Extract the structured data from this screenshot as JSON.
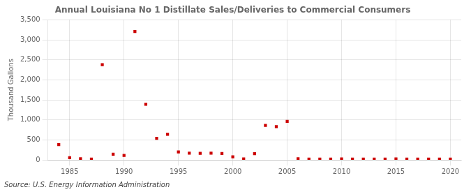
{
  "chart_data": {
    "type": "scatter",
    "title": "Annual Louisiana No 1 Distillate Sales/Deliveries to Commercial Consumers",
    "y_label": "Thousand Gallons",
    "annotation": "Source: U.S. Energy Information Administration",
    "color": "#cc0000",
    "marker": "square",
    "grid": true,
    "xlim": [
      1983,
      2021
    ],
    "ylim": [
      0,
      3500
    ],
    "xticks": [
      1985,
      1990,
      1995,
      2000,
      2005,
      2010,
      2015,
      2020
    ],
    "yticks": [
      0,
      500,
      {
        "value": 1000,
        "label": "1,000"
      },
      {
        "value": 1500,
        "label": "1,500"
      },
      {
        "value": 2000,
        "label": "2,000"
      },
      {
        "value": 2500,
        "label": "2,500"
      },
      {
        "value": 3000,
        "label": "3,000"
      },
      {
        "value": 3500,
        "label": "3,500"
      }
    ],
    "x": [
      1984,
      1985,
      1986,
      1987,
      1988,
      1989,
      1990,
      1991,
      1992,
      1993,
      1994,
      1995,
      1996,
      1997,
      1998,
      1999,
      2000,
      2001,
      2002,
      2003,
      2004,
      2005,
      2006,
      2007,
      2008,
      2009,
      2010,
      2011,
      2012,
      2013,
      2014,
      2015,
      2016,
      2017,
      2018,
      2019,
      2020
    ],
    "values": [
      380,
      55,
      30,
      20,
      2380,
      140,
      110,
      3210,
      1390,
      540,
      640,
      200,
      170,
      165,
      170,
      160,
      75,
      25,
      155,
      860,
      830,
      960,
      30,
      20,
      20,
      20,
      25,
      20,
      20,
      20,
      20,
      25,
      20,
      20,
      20,
      20,
      20
    ]
  }
}
